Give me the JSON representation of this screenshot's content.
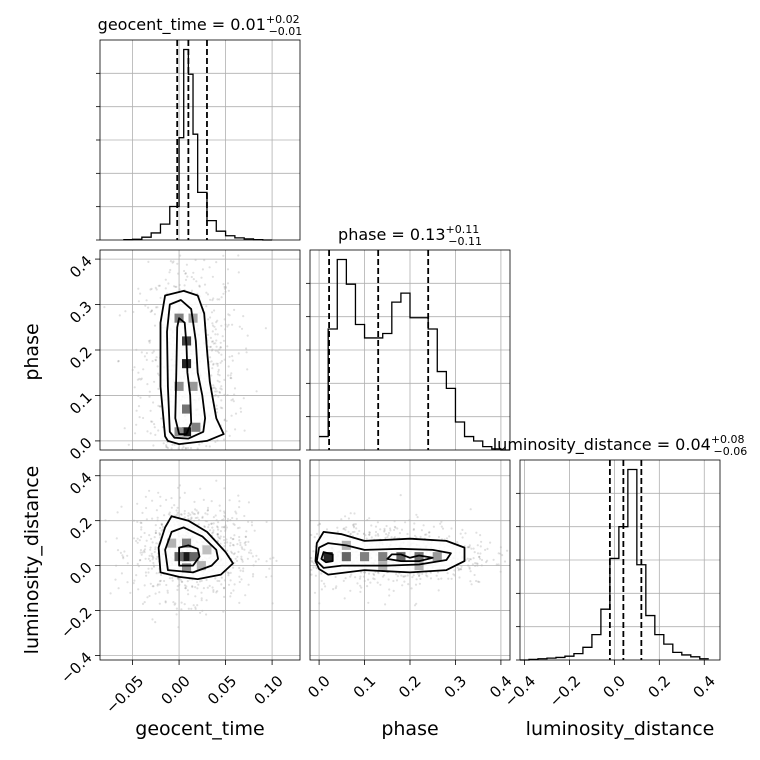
{
  "chart_data": {
    "type": "corner",
    "parameters": [
      "geocent_time",
      "phase",
      "luminosity_distance"
    ],
    "titles": [
      {
        "param": "geocent_time",
        "median": "0.01",
        "plus": "+0.02",
        "minus": "−0.01"
      },
      {
        "param": "phase",
        "median": "0.13",
        "plus": "+0.11",
        "minus": "−0.11"
      },
      {
        "param": "luminosity_distance",
        "median": "0.04",
        "plus": "+0.08",
        "minus": "−0.06"
      }
    ],
    "ranges": {
      "geocent_time": [
        -0.085,
        0.13
      ],
      "phase": [
        -0.02,
        0.42
      ],
      "luminosity_distance": [
        -0.42,
        0.47
      ]
    },
    "ticks": {
      "geocent_time": {
        "values": [
          -0.05,
          0.0,
          0.05,
          0.1
        ],
        "labels": [
          "−0.05",
          "0.00",
          "0.05",
          "0.10"
        ]
      },
      "phase": {
        "values": [
          0.0,
          0.1,
          0.2,
          0.3,
          0.4
        ],
        "labels": [
          "0.0",
          "0.1",
          "0.2",
          "0.3",
          "0.4"
        ]
      },
      "luminosity_distance": {
        "values": [
          -0.4,
          -0.2,
          0.0,
          0.2,
          0.4
        ],
        "labels": [
          "−0.4",
          "−0.2",
          "0.0",
          "0.2",
          "0.4"
        ]
      }
    },
    "quantiles": {
      "geocent_time": [
        -0.002,
        0.01,
        0.03
      ],
      "phase": [
        0.022,
        0.13,
        0.24
      ],
      "luminosity_distance": [
        -0.02,
        0.04,
        0.12
      ]
    },
    "histograms": {
      "geocent_time": {
        "edges": [
          -0.06,
          -0.05,
          -0.04,
          -0.03,
          -0.02,
          -0.01,
          0.0,
          0.005,
          0.01,
          0.015,
          0.02,
          0.03,
          0.04,
          0.05,
          0.06,
          0.07,
          0.08,
          0.09,
          0.1
        ],
        "counts": [
          1,
          2,
          8,
          20,
          45,
          95,
          290,
          540,
          470,
          300,
          135,
          55,
          25,
          12,
          6,
          3,
          1,
          0
        ]
      },
      "phase": {
        "edges": [
          0.0,
          0.01,
          0.02,
          0.03,
          0.04,
          0.05,
          0.06,
          0.07,
          0.08,
          0.09,
          0.1,
          0.11,
          0.12,
          0.13,
          0.14,
          0.15,
          0.16,
          0.17,
          0.18,
          0.19,
          0.2,
          0.21,
          0.22,
          0.23,
          0.24,
          0.25,
          0.26,
          0.27,
          0.28,
          0.29,
          0.3,
          0.31,
          0.32,
          0.33,
          0.34,
          0.35,
          0.36,
          0.37,
          0.38,
          0.39,
          0.4,
          0.42
        ],
        "counts": [
          12,
          12,
          108,
          108,
          170,
          170,
          148,
          148,
          112,
          112,
          100,
          100,
          100,
          100,
          104,
          104,
          132,
          132,
          140,
          140,
          118,
          118,
          118,
          118,
          108,
          108,
          70,
          70,
          55,
          55,
          25,
          25,
          12,
          12,
          8,
          8,
          3,
          3,
          1,
          1,
          0
        ]
      },
      "luminosity_distance": {
        "edges": [
          -0.42,
          -0.38,
          -0.34,
          -0.3,
          -0.26,
          -0.22,
          -0.18,
          -0.14,
          -0.1,
          -0.06,
          -0.02,
          0.02,
          0.06,
          0.1,
          0.14,
          0.18,
          0.22,
          0.26,
          0.3,
          0.34,
          0.38,
          0.42
        ],
        "counts": [
          0,
          1,
          2,
          3,
          4,
          6,
          10,
          20,
          40,
          80,
          160,
          210,
          300,
          150,
          70,
          40,
          25,
          12,
          8,
          5,
          2
        ]
      }
    },
    "joint": [
      {
        "x": "geocent_time",
        "y": "phase",
        "contours": [
          [
            [
              -0.004,
              0.05
            ],
            [
              -0.003,
              0.15
            ],
            [
              -0.002,
              0.25
            ],
            [
              0.0,
              0.27
            ],
            [
              0.006,
              0.26
            ],
            [
              0.008,
              0.21
            ],
            [
              0.009,
              0.15
            ],
            [
              0.012,
              0.1
            ],
            [
              0.013,
              0.04
            ],
            [
              0.008,
              0.015
            ],
            [
              0.0,
              0.015
            ]
          ],
          [
            [
              -0.01,
              0.02
            ],
            [
              -0.012,
              0.12
            ],
            [
              -0.013,
              0.24
            ],
            [
              -0.01,
              0.3
            ],
            [
              0.002,
              0.31
            ],
            [
              0.013,
              0.29
            ],
            [
              0.018,
              0.22
            ],
            [
              0.02,
              0.15
            ],
            [
              0.025,
              0.1
            ],
            [
              0.028,
              0.05
            ],
            [
              0.026,
              0.02
            ],
            [
              0.01,
              0.005
            ],
            [
              -0.005,
              0.007
            ]
          ],
          [
            [
              -0.015,
              0.01
            ],
            [
              -0.02,
              0.12
            ],
            [
              -0.02,
              0.26
            ],
            [
              -0.015,
              0.32
            ],
            [
              0.005,
              0.33
            ],
            [
              0.02,
              0.32
            ],
            [
              0.027,
              0.28
            ],
            [
              0.03,
              0.2
            ],
            [
              0.033,
              0.13
            ],
            [
              0.04,
              0.05
            ],
            [
              0.048,
              0.015
            ],
            [
              0.03,
              0.0
            ],
            [
              0.0,
              -0.007
            ],
            [
              -0.012,
              0.0
            ]
          ]
        ],
        "cells": [
          {
            "x": 0.008,
            "y": 0.17,
            "shade": 0.85
          },
          {
            "x": 0.008,
            "y": 0.22,
            "shade": 0.75
          },
          {
            "x": 0.008,
            "y": 0.02,
            "shade": 0.9
          },
          {
            "x": 0.008,
            "y": 0.07,
            "shade": 0.55
          },
          {
            "x": 0.0,
            "y": 0.12,
            "shade": 0.45
          },
          {
            "x": 0.0,
            "y": 0.27,
            "shade": 0.5
          },
          {
            "x": 0.015,
            "y": 0.12,
            "shade": 0.4
          },
          {
            "x": 0.015,
            "y": 0.27,
            "shade": 0.35
          },
          {
            "x": 0.0,
            "y": 0.02,
            "shade": 0.45
          },
          {
            "x": 0.018,
            "y": 0.03,
            "shade": 0.5
          }
        ]
      },
      {
        "x": "geocent_time",
        "y": "luminosity_distance",
        "contours": [
          [
            [
              0.0,
              0.0
            ],
            [
              0.0,
              0.08
            ],
            [
              0.01,
              0.09
            ],
            [
              0.02,
              0.075
            ],
            [
              0.022,
              0.04
            ],
            [
              0.015,
              0.0
            ]
          ],
          [
            [
              -0.012,
              -0.02
            ],
            [
              -0.015,
              0.07
            ],
            [
              -0.008,
              0.15
            ],
            [
              0.005,
              0.17
            ],
            [
              0.025,
              0.13
            ],
            [
              0.04,
              0.07
            ],
            [
              0.042,
              0.03
            ],
            [
              0.035,
              0.0
            ],
            [
              0.015,
              -0.03
            ]
          ],
          [
            [
              -0.02,
              -0.03
            ],
            [
              -0.022,
              0.08
            ],
            [
              -0.015,
              0.17
            ],
            [
              -0.008,
              0.22
            ],
            [
              0.01,
              0.2
            ],
            [
              0.03,
              0.15
            ],
            [
              0.05,
              0.06
            ],
            [
              0.058,
              0.01
            ],
            [
              0.045,
              -0.04
            ],
            [
              0.02,
              -0.06
            ],
            [
              0.0,
              -0.05
            ]
          ]
        ],
        "cells": [
          {
            "x": 0.008,
            "y": 0.04,
            "shade": 0.9
          },
          {
            "x": 0.0,
            "y": 0.04,
            "shade": 0.6
          },
          {
            "x": 0.016,
            "y": 0.04,
            "shade": 0.6
          },
          {
            "x": 0.008,
            "y": 0.1,
            "shade": 0.5
          },
          {
            "x": 0.008,
            "y": -0.01,
            "shade": 0.45
          },
          {
            "x": -0.008,
            "y": 0.1,
            "shade": 0.3
          },
          {
            "x": 0.024,
            "y": 0.0,
            "shade": 0.3
          },
          {
            "x": 0.03,
            "y": 0.07,
            "shade": 0.25
          }
        ]
      },
      {
        "x": "phase",
        "y": "luminosity_distance",
        "contours": [
          [
            [
              0.005,
              0.03
            ],
            [
              0.01,
              0.06
            ],
            [
              0.03,
              0.05
            ],
            [
              0.03,
              0.02
            ],
            [
              0.015,
              0.015
            ]
          ],
          [
            [
              0.15,
              0.03
            ],
            [
              0.16,
              0.05
            ],
            [
              0.18,
              0.05
            ],
            [
              0.2,
              0.035
            ],
            [
              0.22,
              0.045
            ],
            [
              0.25,
              0.035
            ],
            [
              0.22,
              0.02
            ],
            [
              0.18,
              0.02
            ]
          ],
          [
            [
              -0.005,
              0.02
            ],
            [
              0.0,
              0.08
            ],
            [
              0.02,
              0.1
            ],
            [
              0.06,
              0.09
            ],
            [
              0.1,
              0.07
            ],
            [
              0.18,
              0.075
            ],
            [
              0.25,
              0.07
            ],
            [
              0.29,
              0.055
            ],
            [
              0.28,
              0.025
            ],
            [
              0.22,
              0.005
            ],
            [
              0.15,
              0.0
            ],
            [
              0.05,
              0.0
            ],
            [
              0.01,
              -0.01
            ]
          ],
          [
            [
              -0.008,
              0.02
            ],
            [
              -0.005,
              0.1
            ],
            [
              0.01,
              0.15
            ],
            [
              0.05,
              0.14
            ],
            [
              0.1,
              0.11
            ],
            [
              0.2,
              0.12
            ],
            [
              0.28,
              0.11
            ],
            [
              0.32,
              0.08
            ],
            [
              0.32,
              0.02
            ],
            [
              0.28,
              -0.02
            ],
            [
              0.2,
              -0.03
            ],
            [
              0.1,
              -0.02
            ],
            [
              0.02,
              -0.04
            ],
            [
              0.0,
              -0.015
            ]
          ]
        ],
        "cells": [
          {
            "x": 0.02,
            "y": 0.04,
            "shade": 0.85
          },
          {
            "x": 0.06,
            "y": 0.04,
            "shade": 0.6
          },
          {
            "x": 0.1,
            "y": 0.04,
            "shade": 0.5
          },
          {
            "x": 0.14,
            "y": 0.04,
            "shade": 0.5
          },
          {
            "x": 0.18,
            "y": 0.04,
            "shade": 0.6
          },
          {
            "x": 0.22,
            "y": 0.04,
            "shade": 0.55
          },
          {
            "x": 0.26,
            "y": 0.04,
            "shade": 0.4
          },
          {
            "x": 0.06,
            "y": 0.09,
            "shade": 0.3
          },
          {
            "x": 0.14,
            "y": 0.0,
            "shade": 0.3
          },
          {
            "x": 0.22,
            "y": 0.0,
            "shade": 0.3
          }
        ]
      }
    ],
    "grid": true
  }
}
